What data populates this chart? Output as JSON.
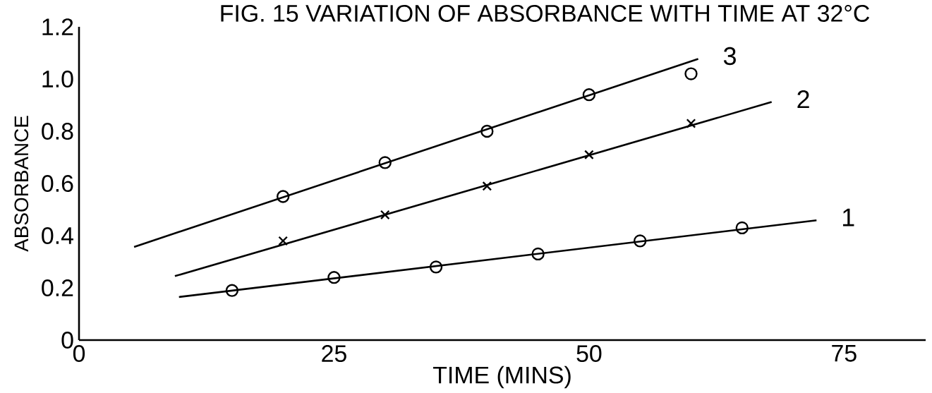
{
  "chart_data": {
    "type": "scatter",
    "title": "FIG. 15 VARIATION OF ABSORBANCE WITH TIME AT 32°C",
    "xlabel": "TIME (MINS)",
    "ylabel": "ABSORBANCE",
    "xlim": [
      0,
      83
    ],
    "ylim": [
      0,
      1.2
    ],
    "xticks": [
      0,
      25,
      50,
      75
    ],
    "yticks": [
      0,
      0.2,
      0.4,
      0.6,
      0.8,
      {
        "value": 1.0,
        "label": "1.0"
      },
      1.2
    ],
    "series": [
      {
        "type": "line",
        "name": "1",
        "marker": "none",
        "color": "#000000",
        "x": [
          9.8,
          72.3
        ],
        "values": [
          0.165,
          0.459
        ]
      },
      {
        "type": "line",
        "name": "2",
        "marker": "none",
        "color": "#000000",
        "x": [
          9.4,
          67.9
        ],
        "values": [
          0.245,
          0.912
        ]
      },
      {
        "type": "line",
        "name": "3",
        "marker": "none",
        "color": "#000000",
        "x": [
          5.4,
          60.7
        ],
        "values": [
          0.357,
          1.077
        ]
      },
      {
        "marker": "circle",
        "color": "#000000",
        "x": [
          15,
          25,
          35,
          45,
          55,
          65
        ],
        "values": [
          0.19,
          0.24,
          0.28,
          0.33,
          0.38,
          0.43
        ]
      },
      {
        "marker": "cross",
        "color": "#000000",
        "x": [
          20,
          30,
          40,
          50,
          60
        ],
        "values": [
          0.38,
          0.48,
          0.59,
          0.71,
          0.83
        ]
      },
      {
        "marker": "circle",
        "color": "#000000",
        "x": [
          20,
          30,
          40,
          50,
          60
        ],
        "values": [
          0.55,
          0.68,
          0.8,
          0.94,
          1.02
        ]
      }
    ]
  }
}
